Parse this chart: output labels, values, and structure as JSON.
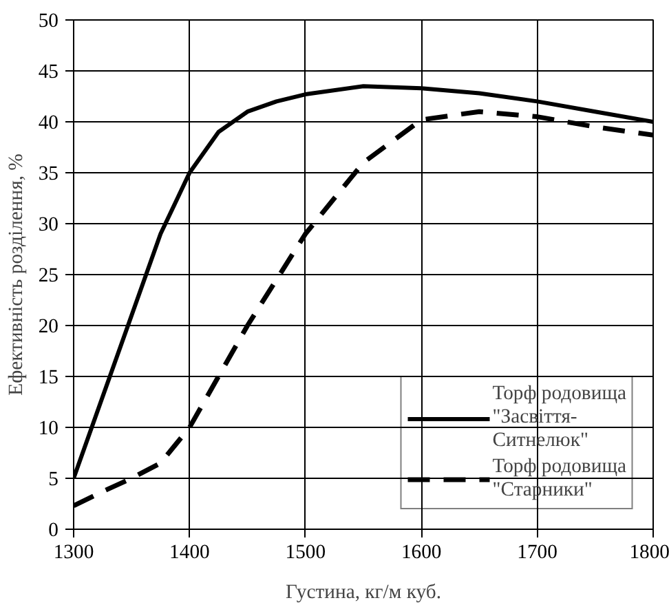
{
  "chart_data": {
    "type": "line",
    "xlabel": "Густина, кг/м куб.",
    "ylabel": "Ефективність розділення, %",
    "x": [
      1300,
      1325,
      1350,
      1375,
      1400,
      1425,
      1450,
      1475,
      1500,
      1550,
      1600,
      1650,
      1700,
      1750,
      1800
    ],
    "series": [
      {
        "name": "Торф родовища \"Засвіття-Ситнелюк\"",
        "color": "#000000",
        "line_style": "solid",
        "values": [
          5,
          13,
          21,
          29,
          35,
          39,
          41,
          42,
          42.7,
          43.5,
          43.3,
          42.8,
          42,
          41,
          40
        ]
      },
      {
        "name": "Торф родовища \"Старники\"",
        "color": "#000000",
        "line_style": "dashed",
        "values": [
          2.3,
          3.7,
          5,
          6.5,
          10,
          15,
          20,
          24.5,
          29,
          36,
          40.2,
          41,
          40.5,
          39.5,
          38.7
        ]
      }
    ],
    "xlim": [
      1300,
      1800
    ],
    "xticks": [
      1300,
      1400,
      1500,
      1600,
      1700,
      1800
    ],
    "ylim": [
      0,
      50
    ],
    "yticks": [
      0,
      5,
      10,
      15,
      20,
      25,
      30,
      35,
      40,
      45,
      50
    ],
    "grid": true,
    "legend": "bottom right",
    "marker": "none"
  }
}
